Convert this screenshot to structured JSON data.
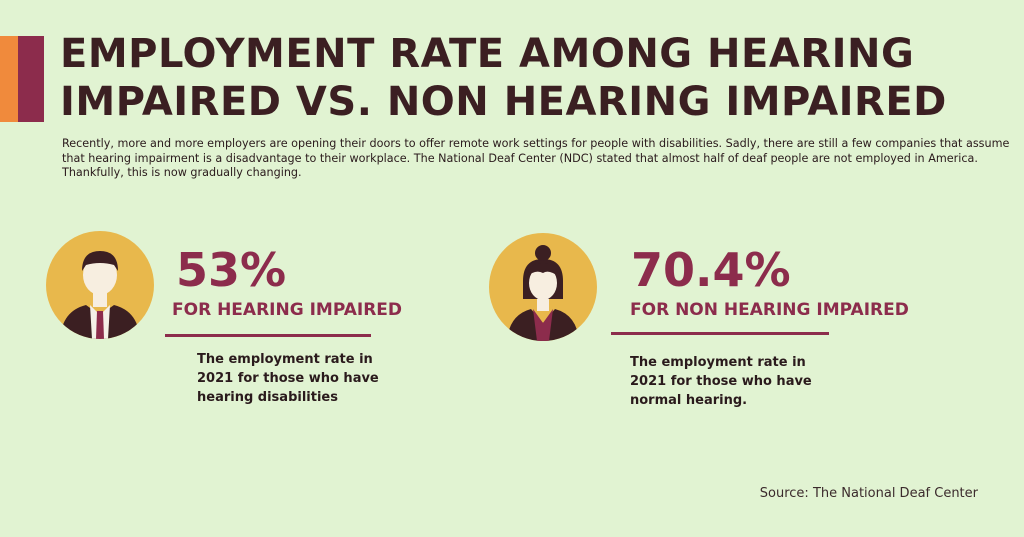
{
  "title": "EMPLOYMENT RATE AMONG HEARING IMPAIRED VS. NON HEARING IMPAIRED",
  "intro": "Recently, more and more employers are opening their doors to offer remote work settings for people with disabilities. Sadly, there are still a few companies that assume that hearing impairment is a disadvantage to their workplace. The National Deaf Center (NDC) stated that almost half of deaf people are not employed in America. Thankfully, this is now gradually changing.",
  "stats": [
    {
      "icon": "man-avatar-icon",
      "value": "53%",
      "label": "FOR HEARING IMPAIRED",
      "description": "The employment rate in 2021 for those who have hearing disabilities"
    },
    {
      "icon": "woman-avatar-icon",
      "value": "70.4%",
      "label": "FOR NON HEARING IMPAIRED",
      "description": "The employment rate in 2021 for those who have normal hearing."
    }
  ],
  "source": "Source: The National Deaf Center",
  "colors": {
    "background": "#e1f3d2",
    "accent": "#8c2c4c",
    "accent_secondary": "#f08a3c",
    "avatar_circle": "#e8b84c",
    "text_dark": "#3b1f22"
  }
}
